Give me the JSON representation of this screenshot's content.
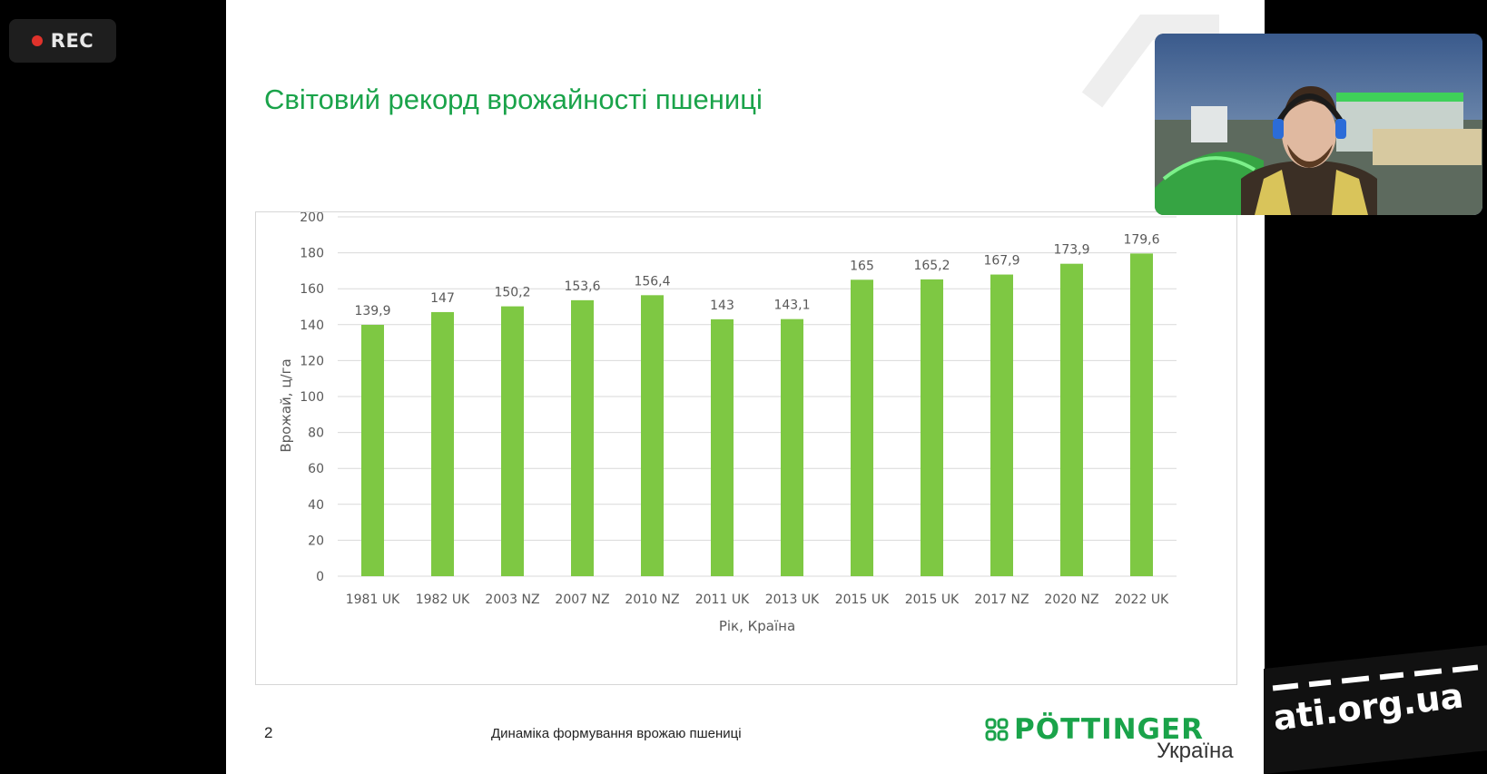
{
  "recording": {
    "label": "REC",
    "indicator_color": "#e0322b"
  },
  "slide": {
    "title": "Світовий рекорд врожайності пшениці",
    "page_number": "2",
    "footer_text": "Динаміка формування врожаю пшениці",
    "brand": {
      "logo_text": "PÖTTINGER",
      "logo_sub": "Україна",
      "color": "#1aa34a"
    }
  },
  "chart_data": {
    "type": "bar",
    "categories": [
      "1981 UK",
      "1982 UK",
      "2003 NZ",
      "2007 NZ",
      "2010 NZ",
      "2011 UK",
      "2013 UK",
      "2015 UK",
      "2015 UK",
      "2017 NZ",
      "2020 NZ",
      "2022 UK"
    ],
    "values": [
      139.9,
      147,
      150.2,
      153.6,
      156.4,
      143,
      143.1,
      165,
      165.2,
      167.9,
      173.9,
      179.6
    ],
    "data_labels": [
      "139,9",
      "147",
      "150,2",
      "153,6",
      "156,4",
      "143",
      "143,1",
      "165",
      "165,2",
      "167,9",
      "173,9",
      "179,6"
    ],
    "ylabel": "Врожай, ц/га",
    "xlabel": "Рік, Країна",
    "ylim": [
      0,
      200
    ],
    "yticks": [
      "0",
      "20",
      "40",
      "60",
      "80",
      "100",
      "120",
      "140",
      "160",
      "180",
      "200"
    ],
    "grid": true,
    "bar_color": "#7ec843"
  },
  "webcam": {
    "description_icon": "presenter-video-icon"
  },
  "watermark": {
    "text": "ati.org.ua"
  }
}
